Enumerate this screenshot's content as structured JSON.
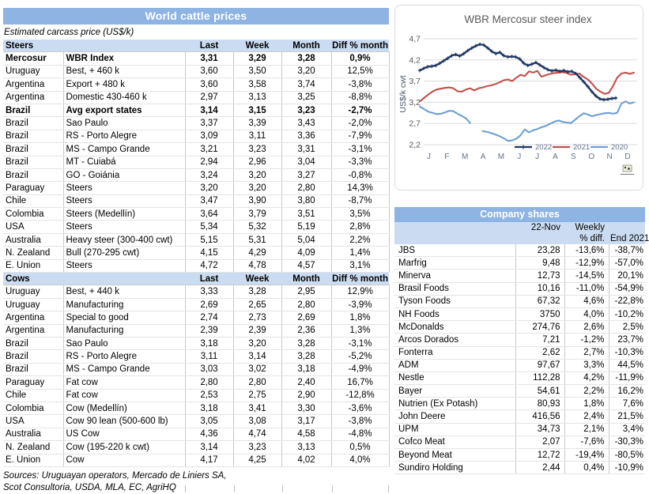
{
  "left_panel": {
    "title": "World cattle prices",
    "subtitle": "Estimated carcass price (US$/k)",
    "columns": [
      "Last",
      "Week",
      "Month",
      "Diff % month"
    ],
    "steers": {
      "label": "Steers",
      "rows": [
        {
          "country": "Mercosur",
          "desc": "WBR Index",
          "last": "3,31",
          "week": "3,29",
          "month": "3,28",
          "diff": "0,9%",
          "bold": true
        },
        {
          "country": "Uruguay",
          "desc": "Best, + 460 k",
          "last": "3,60",
          "week": "3,50",
          "month": "3,20",
          "diff": "12,5%"
        },
        {
          "country": "Argentina",
          "desc": "Export + 480 k",
          "last": "3,60",
          "week": "3,58",
          "month": "3,74",
          "diff": "-3,8%"
        },
        {
          "country": "Argentina",
          "desc": "Domestic 430-460 k",
          "last": "2,97",
          "week": "3,13",
          "month": "3,25",
          "diff": "-8,8%"
        },
        {
          "country": "Brazil",
          "desc": "Avg export states",
          "last": "3,14",
          "week": "3,15",
          "month": "3,23",
          "diff": "-2,7%",
          "bold": true
        },
        {
          "country": "Brazil",
          "desc": "Sao Paulo",
          "last": "3,37",
          "week": "3,39",
          "month": "3,43",
          "diff": "-2,0%"
        },
        {
          "country": "Brazil",
          "desc": "RS - Porto Alegre",
          "last": "3,09",
          "week": "3,11",
          "month": "3,36",
          "diff": "-7,9%"
        },
        {
          "country": "Brazil",
          "desc": "MS - Campo Grande",
          "last": "3,21",
          "week": "3,23",
          "month": "3,31",
          "diff": "-3,1%"
        },
        {
          "country": "Brazil",
          "desc": "MT - Cuiabá",
          "last": "2,94",
          "week": "2,96",
          "month": "3,04",
          "diff": "-3,3%"
        },
        {
          "country": "Brazil",
          "desc": "GO - Goiánia",
          "last": "3,24",
          "week": "3,20",
          "month": "3,27",
          "diff": "-0,8%"
        },
        {
          "country": "Paraguay",
          "desc": "Steers",
          "last": "3,20",
          "week": "3,20",
          "month": "2,80",
          "diff": "14,3%"
        },
        {
          "country": "Chile",
          "desc": "Steers",
          "last": "3,47",
          "week": "3,90",
          "month": "3,80",
          "diff": "-8,7%"
        },
        {
          "country": "Colombia",
          "desc": "Steers (Medellín)",
          "last": "3,64",
          "week": "3,79",
          "month": "3,51",
          "diff": "3,5%"
        },
        {
          "country": "USA",
          "desc": "Steers",
          "last": "5,34",
          "week": "5,32",
          "month": "5,19",
          "diff": "2,8%"
        },
        {
          "country": "Australia",
          "desc": "Heavy steer (300-400 cwt)",
          "last": "5,15",
          "week": "5,31",
          "month": "5,04",
          "diff": "2,2%"
        },
        {
          "country": "N. Zealand",
          "desc": "Bull (270-295 cwt)",
          "last": "4,15",
          "week": "4,29",
          "month": "4,09",
          "diff": "1,4%"
        },
        {
          "country": "E. Union",
          "desc": "Steers",
          "last": "4,72",
          "week": "4,78",
          "month": "4,57",
          "diff": "3,1%"
        }
      ]
    },
    "cows": {
      "label": "Cows",
      "rows": [
        {
          "country": "Uruguay",
          "desc": "Best, + 440 k",
          "last": "3,33",
          "week": "3,28",
          "month": "2,95",
          "diff": "12,9%"
        },
        {
          "country": "Uruguay",
          "desc": "Manufacturing",
          "last": "2,69",
          "week": "2,65",
          "month": "2,80",
          "diff": "-3,9%"
        },
        {
          "country": "Argentina",
          "desc": "Special to good",
          "last": "2,74",
          "week": "2,73",
          "month": "2,69",
          "diff": "1,8%"
        },
        {
          "country": "Argentina",
          "desc": "Manufacturing",
          "last": "2,39",
          "week": "2,39",
          "month": "2,36",
          "diff": "1,3%"
        },
        {
          "country": "Brazil",
          "desc": "Sao Paulo",
          "last": "3,18",
          "week": "3,20",
          "month": "3,28",
          "diff": "-3,1%"
        },
        {
          "country": "Brazil",
          "desc": "RS - Porto Alegre",
          "last": "3,11",
          "week": "3,14",
          "month": "3,28",
          "diff": "-5,2%"
        },
        {
          "country": "Brazil",
          "desc": "MS - Campo Grande",
          "last": "3,03",
          "week": "3,02",
          "month": "3,18",
          "diff": "-4,9%"
        },
        {
          "country": "Paraguay",
          "desc": "Fat cow",
          "last": "2,80",
          "week": "2,80",
          "month": "2,40",
          "diff": "16,7%"
        },
        {
          "country": "Chile",
          "desc": "Fat cow",
          "last": "2,53",
          "week": "2,75",
          "month": "2,90",
          "diff": "-12,8%"
        },
        {
          "country": "Colombia",
          "desc": "Cow (Medellín)",
          "last": "3,18",
          "week": "3,41",
          "month": "3,30",
          "diff": "-3,6%"
        },
        {
          "country": "USA",
          "desc": "Cow 90 lean (500-600 lb)",
          "last": "3,05",
          "week": "3,08",
          "month": "3,17",
          "diff": "-3,8%"
        },
        {
          "country": "Australia",
          "desc": "US Cow",
          "last": "4,36",
          "week": "4,74",
          "month": "4,58",
          "diff": "-4,8%"
        },
        {
          "country": "N. Zealand",
          "desc": "Cow (195-220 k cwt)",
          "last": "3,14",
          "week": "3,23",
          "month": "3,13",
          "diff": "0,5%"
        },
        {
          "country": "E. Union",
          "desc": "Cow",
          "last": "4,17",
          "week": "4,25",
          "month": "4,02",
          "diff": "4,0%"
        }
      ]
    },
    "sources_line1": "Sources: Uruguayan operators, Mercado de Liniers SA,",
    "sources_line2": "Scot Consultoria, USDA, MLA, EC, AgriHQ"
  },
  "chart_data": {
    "type": "line",
    "title": "WBR Mercosur steer index",
    "ylabel": "US$/k cwt",
    "ylim": [
      2.2,
      4.7
    ],
    "yticks": [
      4.7,
      4.2,
      3.7,
      3.2,
      2.7,
      2.2
    ],
    "xticklabels": [
      "J",
      "F",
      "M",
      "A",
      "M",
      "J",
      "J",
      "A",
      "S",
      "O",
      "N",
      "D"
    ],
    "grid": true,
    "legend_position": "inside-bottom-right",
    "series": [
      {
        "name": "2022",
        "color": "#1f3864",
        "marker": "plus",
        "x_end_month": 10.85,
        "values": [
          3.95,
          4.0,
          4.04,
          4.05,
          4.07,
          4.12,
          4.18,
          4.24,
          4.3,
          4.33,
          4.29,
          4.35,
          4.42,
          4.48,
          4.53,
          4.57,
          4.55,
          4.48,
          4.4,
          4.35,
          4.38,
          4.3,
          4.27,
          4.28,
          4.27,
          4.22,
          4.12,
          4.07,
          4.1,
          4.14,
          4.08,
          4.02,
          3.97,
          3.94,
          3.96,
          3.93,
          3.95,
          3.92,
          3.93,
          3.88,
          3.78,
          3.68,
          3.57,
          3.45,
          3.35,
          3.28,
          3.26,
          3.27,
          3.29,
          3.3
        ]
      },
      {
        "name": "2021",
        "color": "#c0504d",
        "marker": "none",
        "x_end_month": 11.85,
        "values": [
          3.22,
          3.3,
          3.38,
          3.45,
          3.5,
          3.52,
          3.54,
          3.55,
          3.53,
          3.46,
          3.45,
          3.5,
          3.53,
          3.48,
          3.53,
          3.55,
          3.58,
          3.6,
          3.63,
          3.67,
          3.72,
          3.74,
          3.7,
          3.78,
          3.85,
          3.82,
          3.93,
          3.9,
          3.94,
          3.8,
          3.84,
          3.87,
          3.89,
          3.9,
          3.91,
          3.89,
          3.85,
          3.86,
          3.88,
          3.8,
          3.74,
          3.64,
          3.52,
          3.45,
          3.4,
          3.42,
          3.58,
          3.78,
          3.88,
          3.9,
          3.87,
          3.9
        ]
      },
      {
        "name": "2020",
        "color": "#6e9fd4",
        "marker": "none",
        "x_end_month": 11.85,
        "values": [
          3.1,
          3.04,
          2.98,
          2.95,
          2.92,
          2.93,
          2.96,
          3.0,
          2.99,
          2.93,
          2.88,
          2.82,
          2.71,
          null,
          null,
          2.52,
          2.5,
          2.47,
          2.44,
          2.4,
          2.35,
          2.29,
          2.3,
          2.34,
          2.42,
          2.56,
          2.49,
          2.54,
          2.57,
          2.61,
          2.64,
          2.69,
          2.74,
          2.77,
          2.74,
          2.72,
          2.71,
          2.79,
          2.87,
          2.94,
          2.91,
          2.87,
          2.9,
          2.92,
          2.94,
          2.95,
          2.93,
          2.95,
          3.17,
          3.22,
          3.17,
          3.2
        ]
      }
    ]
  },
  "company_shares": {
    "title": "Company shares",
    "columns": {
      "date": "22-Nov",
      "weekly_line1": "Weekly",
      "weekly_line2": "% diff.",
      "end": "End 2021"
    },
    "rows": [
      {
        "name": "JBS",
        "price": "23,28",
        "weekly": "-13,6%",
        "end": "-38,7%"
      },
      {
        "name": "Marfrig",
        "price": "9,48",
        "weekly": "-12,9%",
        "end": "-57,0%"
      },
      {
        "name": "Minerva",
        "price": "12,73",
        "weekly": "-14,5%",
        "end": "20,1%"
      },
      {
        "name": "Brasil Foods",
        "price": "10,16",
        "weekly": "-11,0%",
        "end": "-54,9%"
      },
      {
        "name": "Tyson Foods",
        "price": "67,32",
        "weekly": "4,6%",
        "end": "-22,8%"
      },
      {
        "name": "NH Foods",
        "price": "3750",
        "weekly": "4,0%",
        "end": "-10,2%"
      },
      {
        "name": "McDonalds",
        "price": "274,76",
        "weekly": "2,6%",
        "end": "2,5%"
      },
      {
        "name": "Arcos Dorados",
        "price": "7,21",
        "weekly": "-1,2%",
        "end": "23,7%"
      },
      {
        "name": "Fonterra",
        "price": "2,62",
        "weekly": "2,7%",
        "end": "-10,3%"
      },
      {
        "name": "ADM",
        "price": "97,67",
        "weekly": "3,3%",
        "end": "44,5%"
      },
      {
        "name": "Nestle",
        "price": "112,28",
        "weekly": "4,2%",
        "end": "-11,9%"
      },
      {
        "name": "Bayer",
        "price": "54,61",
        "weekly": "2,2%",
        "end": "16,2%"
      },
      {
        "name": "Nutrien (Ex Potash)",
        "price": "80,93",
        "weekly": "1,8%",
        "end": "7,6%"
      },
      {
        "name": "John Deere",
        "price": "416,56",
        "weekly": "2,4%",
        "end": "21,5%"
      },
      {
        "name": "UPM",
        "price": "34,73",
        "weekly": "2,1%",
        "end": "3,4%"
      },
      {
        "name": "Cofco Meat",
        "price": "2,07",
        "weekly": "-7,6%",
        "end": "-30,3%"
      },
      {
        "name": "Beyond Meat",
        "price": "12,72",
        "weekly": "-19,4%",
        "end": "-80,5%"
      },
      {
        "name": "Sundiro Holding",
        "price": "2,44",
        "weekly": "0,4%",
        "end": "-10,9%"
      }
    ]
  },
  "colors": {
    "band_blue": "#8DB4E2",
    "band_light_blue": "#CBDCF2",
    "series_2022": "#1f3864",
    "series_2021": "#c0504d",
    "series_2020": "#6e9fd4",
    "grid": "#D9D9D9"
  }
}
